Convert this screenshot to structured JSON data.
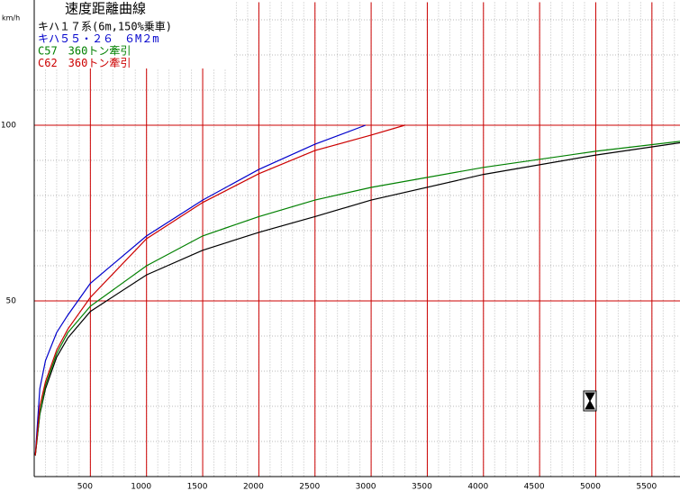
{
  "chart_data": {
    "type": "line",
    "title": "速度距離曲線",
    "y_label": "km/h",
    "xlim": [
      0,
      5750
    ],
    "ylim": [
      0,
      135
    ],
    "xticks": [
      500,
      1000,
      1500,
      2000,
      2500,
      3000,
      3500,
      4000,
      4500,
      5000,
      5500
    ],
    "yticks": [
      50,
      100
    ],
    "grid": true,
    "grid_color": "#cc0000",
    "series": [
      {
        "name": "キハ１７系(6m,150%乗車)",
        "color": "#000000",
        "x": [
          10,
          50,
          100,
          200,
          300,
          500,
          1000,
          1500,
          2000,
          2500,
          3000,
          4000,
          5000,
          5750
        ],
        "values": [
          6,
          17.7,
          25,
          34,
          39.5,
          47,
          57.4,
          64.4,
          69.5,
          74,
          78.7,
          86,
          91.5,
          95
        ]
      },
      {
        "name": "キハ５５・２６　６M２m",
        "color": "#0000cc",
        "x": [
          10,
          50,
          100,
          200,
          300,
          500,
          1000,
          1500,
          2000,
          2500,
          2950
        ],
        "values": [
          6,
          25,
          33,
          41,
          46,
          55,
          68.5,
          78.7,
          87.4,
          94.6,
          100
        ]
      },
      {
        "name": "C57　360トン牽引",
        "color": "#008000",
        "x": [
          10,
          50,
          100,
          200,
          300,
          500,
          1000,
          1500,
          2000,
          2500,
          3000,
          4000,
          5000,
          5750
        ],
        "values": [
          6,
          18,
          26,
          35,
          41,
          48.5,
          60,
          68.5,
          74,
          78.7,
          82.3,
          88,
          92.6,
          95.4
        ]
      },
      {
        "name": "C62　360トン牽引",
        "color": "#cc0000",
        "x": [
          10,
          50,
          100,
          200,
          300,
          500,
          1000,
          1500,
          2000,
          2500,
          3000,
          3300
        ],
        "values": [
          6,
          20,
          27,
          36,
          42,
          51,
          67.7,
          78,
          86.2,
          92.8,
          97.2,
          100
        ]
      }
    ]
  }
}
